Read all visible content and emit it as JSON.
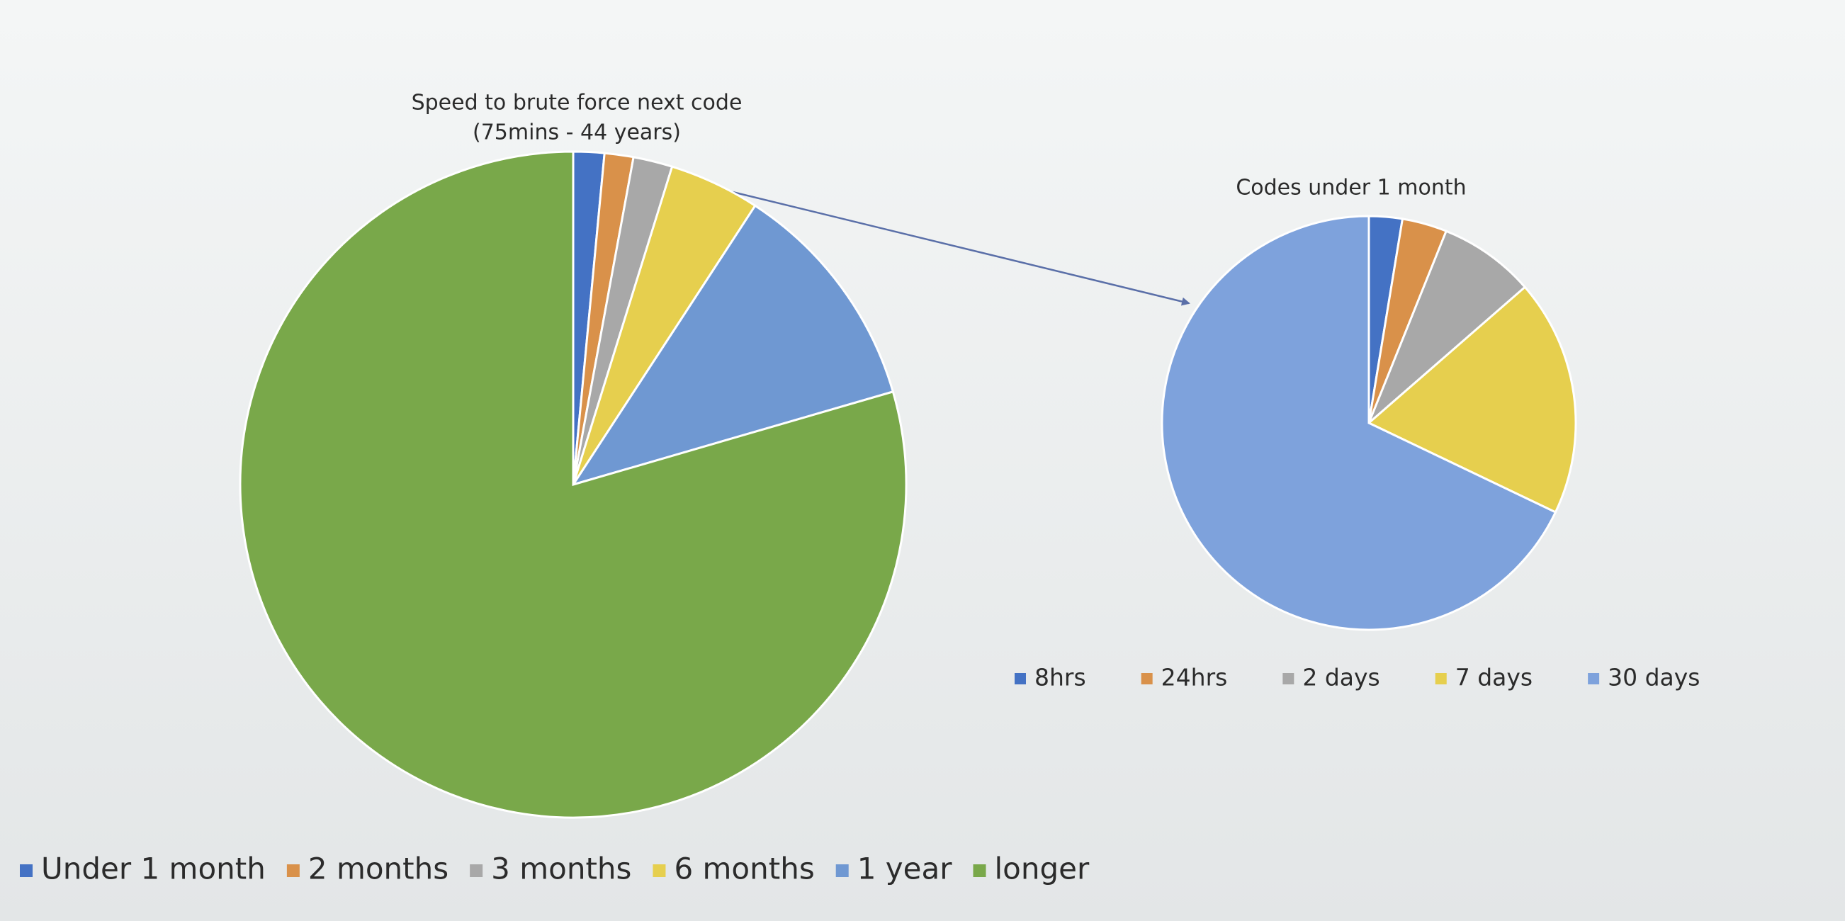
{
  "chart_data": [
    {
      "type": "pie",
      "title": "Speed to brute force next code",
      "subtitle": "(75mins - 44 years)",
      "categories": [
        "Under 1 month",
        "2 months",
        "3 months",
        "6 months",
        "1 year",
        "longer"
      ],
      "values": [
        1.5,
        1.4,
        1.9,
        4.4,
        11.3,
        79.5
      ],
      "colors": [
        "#4472c4",
        "#d9914a",
        "#a8a8a8",
        "#e6cf4e",
        "#6f98d2",
        "#79a84a"
      ],
      "legend": "bottom"
    },
    {
      "type": "pie",
      "title": "Codes under 1 month",
      "categories": [
        "8hrs",
        "24hrs",
        "2 days",
        "7 days",
        "30 days"
      ],
      "values": [
        2.6,
        3.5,
        7.5,
        18.5,
        67.9
      ],
      "colors": [
        "#4472c4",
        "#d9914a",
        "#a8a8a8",
        "#e6cf4e",
        "#7ea2dc"
      ],
      "legend": "bottom"
    }
  ]
}
